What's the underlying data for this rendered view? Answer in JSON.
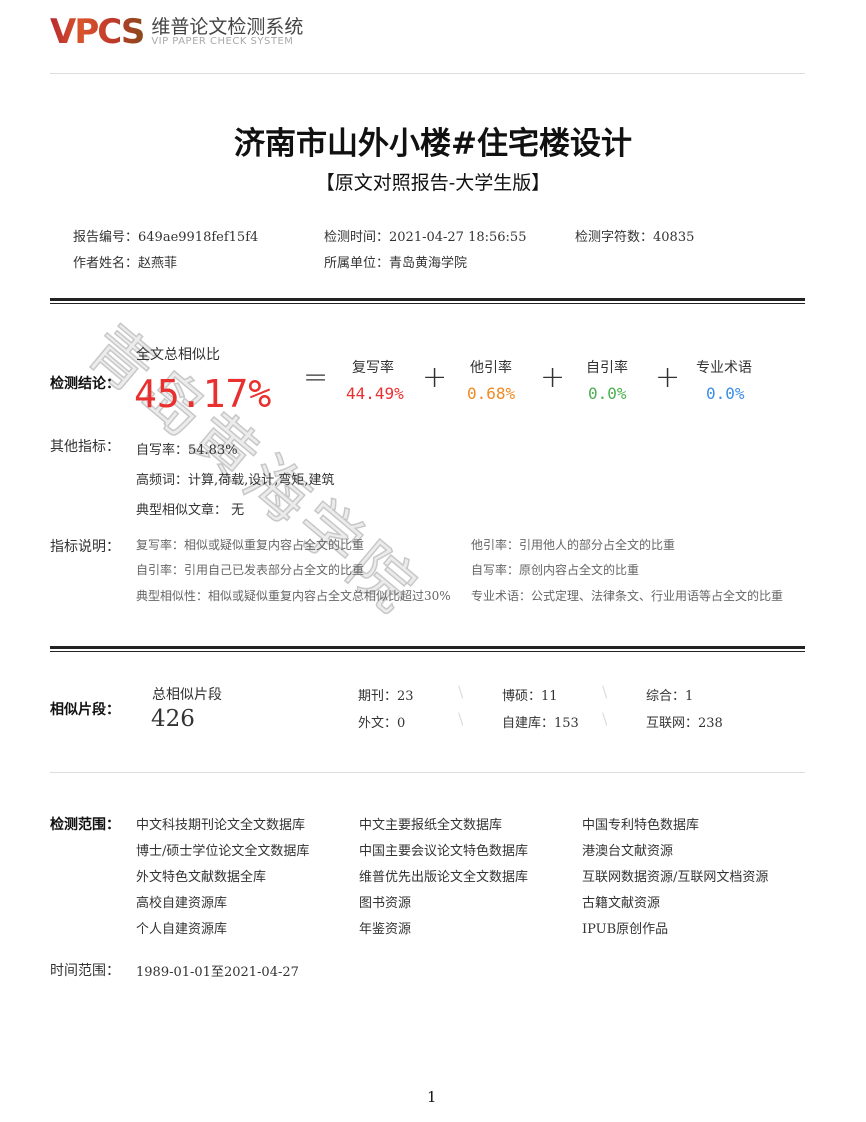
{
  "header": {
    "logo_mark": "VPCS",
    "logo_cn": "维普论文检测系统",
    "logo_en": "VIP PAPER CHECK SYSTEM"
  },
  "title": "济南市山外小楼#住宅楼设计",
  "subtitle": "【原文对照报告-大学生版】",
  "meta": {
    "report_no": "报告编号：649ae9918fef15f4",
    "check_time": "检测时间：2021-04-27 18:56:55",
    "char_count": "检测字符数：40835",
    "author": "作者姓名：赵燕菲",
    "unit": "所属单位：青岛黄海学院"
  },
  "watermark": "青岛黄海学院",
  "conclusion": {
    "label": "检测结论：",
    "total_label": "全文总相似比",
    "total": "45.17%",
    "equals": "=",
    "plus": "+",
    "items": [
      {
        "label": "复写率",
        "value": "44.49%",
        "color": "#e8302f"
      },
      {
        "label": "他引率",
        "value": "0.68%",
        "color": "#f08a24"
      },
      {
        "label": "自引率",
        "value": "0.0%",
        "color": "#4caf50"
      },
      {
        "label": "专业术语",
        "value": "0.0%",
        "color": "#3b8ee8"
      }
    ]
  },
  "other": {
    "label": "其他指标：",
    "self_write": "自写率：54.83%",
    "keywords": "高频词：计算,荷载,设计,弯矩,建筑",
    "typical": "典型相似文章：  无"
  },
  "notes": {
    "label": "指标说明：",
    "items": [
      "复写率：相似或疑似重复内容占全文的比重",
      "他引率：引用他人的部分占全文的比重",
      "自引率：引用自己已发表部分占全文的比重",
      "自写率：原创内容占全文的比重",
      "典型相似性：相似或疑似重复内容占全文总相似比超过30%",
      "专业术语：公式定理、法律条文、行业用语等占全文的比重"
    ]
  },
  "segments": {
    "label": "相似片段：",
    "total_label": "总相似片段",
    "total": "426",
    "items": [
      "期刊：23",
      "博硕：11",
      "综合：1",
      "外文：0",
      "自建库：153",
      "互联网：238"
    ]
  },
  "scope": {
    "label": "检测范围：",
    "items": [
      "中文科技期刊论文全文数据库",
      "中文主要报纸全文数据库",
      "中国专利特色数据库",
      "博士/硕士学位论文全文数据库",
      "中国主要会议论文特色数据库",
      "港澳台文献资源",
      "外文特色文献数据全库",
      "维普优先出版论文全文数据库",
      "互联网数据资源/互联网文档资源",
      "高校自建资源库",
      "图书资源",
      "古籍文献资源",
      "个人自建资源库",
      "年鉴资源",
      "IPUB原创作品"
    ]
  },
  "time_range": {
    "label": "时间范围：",
    "value": "1989-01-01至2021-04-27"
  },
  "page_number": "1"
}
